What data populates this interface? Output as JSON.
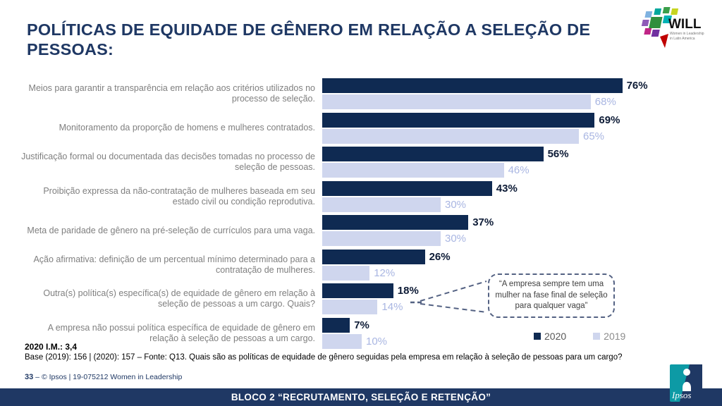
{
  "slide": {
    "title": "POLÍTICAS DE EQUIDADE DE GÊNERO EM RELAÇÃO A SELEÇÃO DE PESSOAS:",
    "im_note": "2020 I.M.: 3,4",
    "base_note": "Base (2019): 156 | (2020): 157 – Fonte: Q13. Quais são as políticas de equidade de gênero seguidas pela empresa em relação à seleção de pessoas para um cargo?",
    "page_number": "33",
    "credit_separator": "–",
    "credit": "© Ipsos | 19-075212 Women in Leadership",
    "footer_banner": "BLOCO 2 “RECRUTAMENTO, SELEÇÃO E RETENÇÃO”"
  },
  "logos": {
    "will": {
      "name": "WILL",
      "tagline_line1": "Women in Leadership",
      "tagline_line2": "in Latin America"
    },
    "ipsos": {
      "name": "Ipsos"
    }
  },
  "callout": {
    "text": "“A empresa sempre tem uma mulher na fase final de seleção para qualquer vaga”"
  },
  "colors": {
    "navy": "#1f3864",
    "bar_2020": "#0f2a52",
    "bar_2019": "#cfd6ee",
    "value_2020_text": "#0d1b36",
    "value_2019_text": "#a9b6e2",
    "category_text": "#7f7f7f",
    "callout_border": "#546283"
  },
  "chart_data": {
    "type": "bar",
    "orientation": "horizontal",
    "title": "Políticas de equidade de gênero em relação a seleção de pessoas",
    "value_suffix": "%",
    "xlim": [
      0,
      100
    ],
    "grid": false,
    "legend_position": "bottom-right",
    "categories": [
      "Meios para garantir a transparência em relação aos critérios utilizados no processo de seleção.",
      "Monitoramento da proporção de homens e mulheres contratados.",
      "Justificação formal ou documentada das decisões tomadas no processo de seleção de pessoas.",
      "Proibição expressa da não-contratação de mulheres baseada em seu estado civil ou condição reprodutiva.",
      "Meta de paridade de gênero na pré-seleção de currículos para uma vaga.",
      "Ação afirmativa: definição de um percentual mínimo determinado para a contratação de mulheres.",
      "Outra(s) política(s) específica(s) de equidade de gênero em relação à seleção de pessoas a um cargo. Quais?",
      "A empresa não possui política específica de equidade de gênero em relação à seleção de pessoas a um cargo."
    ],
    "series": [
      {
        "name": "2020",
        "color": "#0f2a52",
        "values": [
          76,
          69,
          56,
          43,
          37,
          26,
          18,
          7
        ]
      },
      {
        "name": "2019",
        "color": "#cfd6ee",
        "values": [
          68,
          65,
          46,
          30,
          30,
          12,
          14,
          10
        ]
      }
    ]
  }
}
